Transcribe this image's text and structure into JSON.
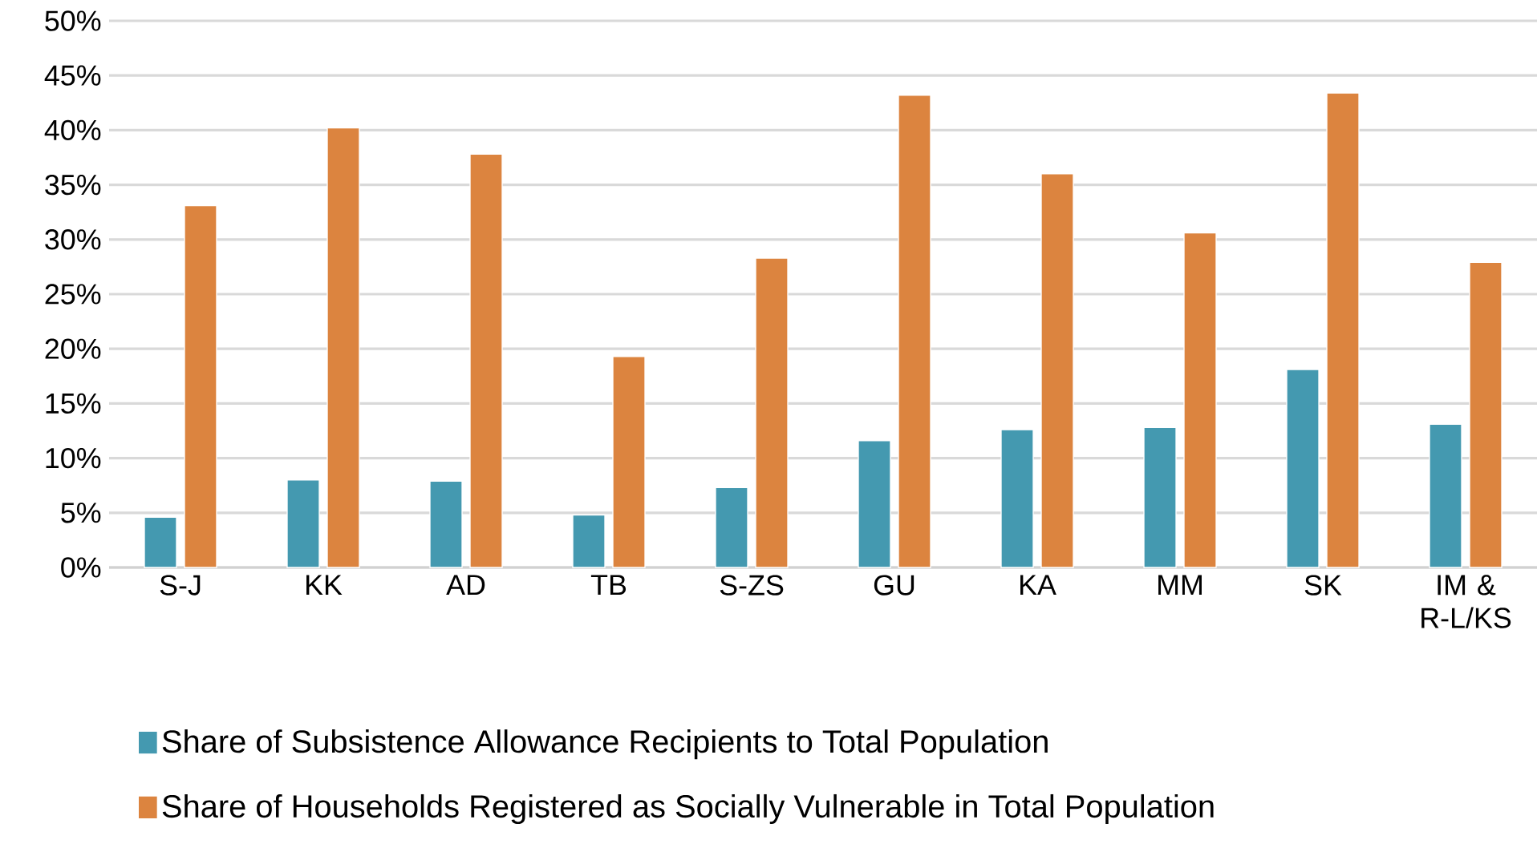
{
  "chart_data": {
    "type": "bar",
    "categories": [
      "S-J",
      "KK",
      "AD",
      "TB",
      "S-ZS",
      "GU",
      "KA",
      "MM",
      "SK",
      "IM & R-L/KS"
    ],
    "series": [
      {
        "name": "Share of Subsistence Allowance Recipients to Total Population",
        "color": "#4499b0",
        "values": [
          4.6,
          8.0,
          7.9,
          4.8,
          7.3,
          11.6,
          12.6,
          12.8,
          18.1,
          13.1
        ]
      },
      {
        "name": "Share of Households Registered as Socially Vulnerable in Total Population",
        "color": "#dc843f",
        "values": [
          33.1,
          40.2,
          37.8,
          19.3,
          28.3,
          43.2,
          36.0,
          30.6,
          43.4,
          27.9
        ]
      }
    ],
    "ylim": [
      0,
      50
    ],
    "yticks": [
      {
        "value": 0,
        "label": "0%"
      },
      {
        "value": 5,
        "label": "5%"
      },
      {
        "value": 10,
        "label": "10%"
      },
      {
        "value": 15,
        "label": "15%"
      },
      {
        "value": 20,
        "label": "20%"
      },
      {
        "value": 25,
        "label": "25%"
      },
      {
        "value": 30,
        "label": "30%"
      },
      {
        "value": 35,
        "label": "35%"
      },
      {
        "value": 40,
        "label": "40%"
      },
      {
        "value": 45,
        "label": "45%"
      },
      {
        "value": 50,
        "label": "50%"
      }
    ],
    "grid": "y",
    "legend": "bottom"
  }
}
